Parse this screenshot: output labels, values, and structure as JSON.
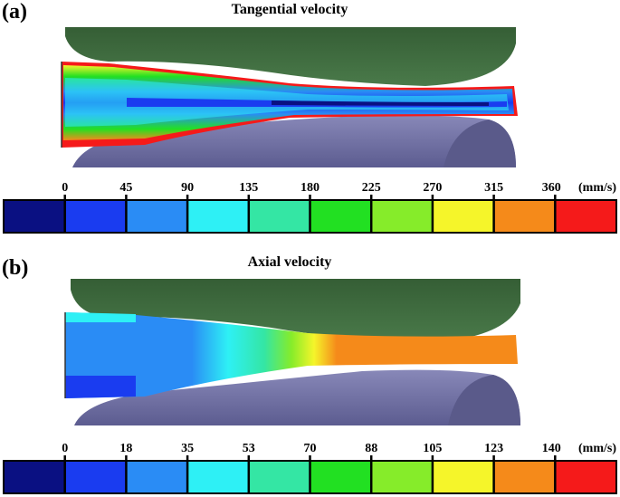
{
  "panel_a": {
    "label": "(a)",
    "title": "Tangential velocity",
    "colorbar": {
      "ticks": [
        "0",
        "45",
        "90",
        "135",
        "180",
        "225",
        "270",
        "315",
        "360"
      ],
      "unit": "(mm/s)"
    }
  },
  "panel_b": {
    "label": "(b)",
    "title": "Axial velocity",
    "colorbar": {
      "ticks": [
        "0",
        "18",
        "35",
        "53",
        "70",
        "88",
        "105",
        "123",
        "140"
      ],
      "unit": "(mm/s)"
    }
  },
  "colors": {
    "levels": [
      "#0a1082",
      "#1a3cf0",
      "#2a8cf5",
      "#2ef0f5",
      "#34e6a4",
      "#22e022",
      "#86ec2a",
      "#f5f52a",
      "#f58a1a",
      "#f51a1a"
    ],
    "roll_top": "#3f6b3f",
    "roll_bottom": "#6a6aa0"
  }
}
